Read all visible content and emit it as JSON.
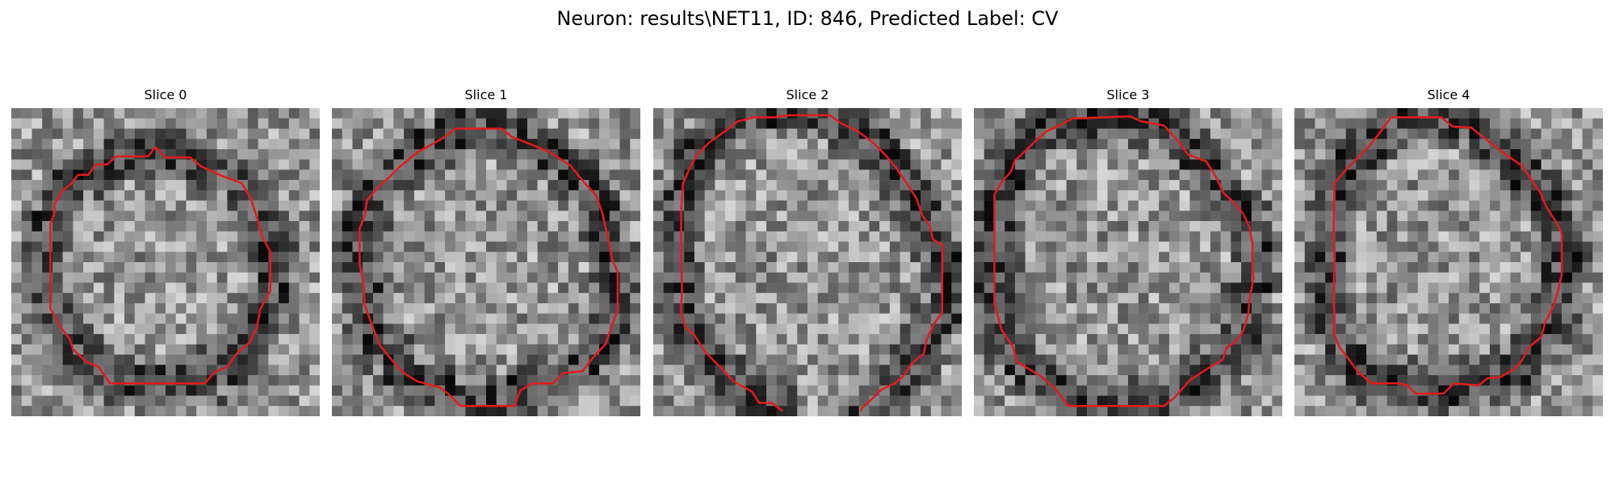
{
  "figure": {
    "title": "Neuron: results\\NET11, ID: 846, Predicted Label: CV"
  },
  "contour_color": "#e41a1c",
  "panels": [
    {
      "title": "Slice 0",
      "pixel_seed": 11
    },
    {
      "title": "Slice 1",
      "pixel_seed": 23
    },
    {
      "title": "Slice 2",
      "pixel_seed": 37
    },
    {
      "title": "Slice 3",
      "pixel_seed": 53
    },
    {
      "title": "Slice 4",
      "pixel_seed": 71
    }
  ]
}
